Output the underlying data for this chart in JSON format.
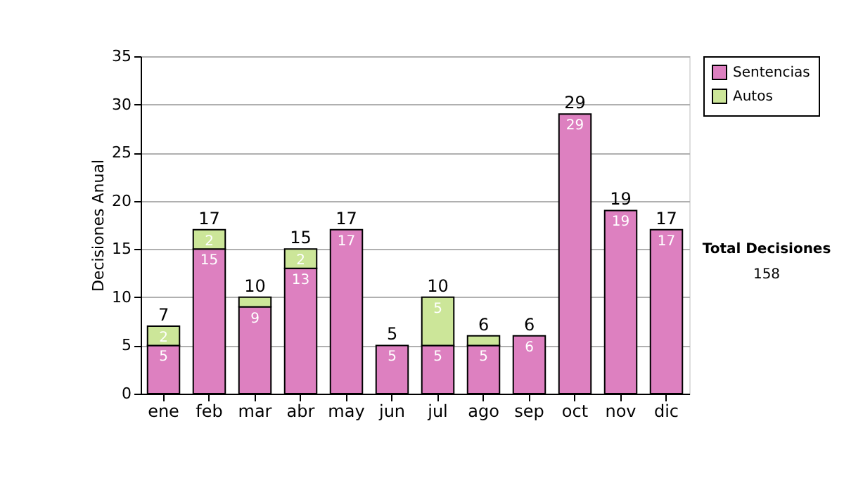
{
  "chart_data": {
    "type": "bar",
    "stacked": true,
    "ylabel": "Decisiones Anual",
    "categories": [
      "ene",
      "feb",
      "mar",
      "abr",
      "may",
      "jun",
      "jul",
      "ago",
      "sep",
      "oct",
      "nov",
      "dic"
    ],
    "series": [
      {
        "name": "Sentencias",
        "color": "#dd80c0",
        "values": [
          5,
          15,
          9,
          13,
          17,
          5,
          5,
          5,
          6,
          29,
          19,
          17
        ],
        "value_labels": [
          "5",
          "15",
          "9",
          "13",
          "17",
          "5",
          "5",
          "5",
          "6",
          "29",
          "19",
          "17"
        ]
      },
      {
        "name": "Autos",
        "color": "#cce699",
        "values": [
          2,
          2,
          1,
          2,
          0,
          0,
          5,
          1,
          0,
          0,
          0,
          0
        ],
        "value_labels": [
          "2",
          "2",
          null,
          "2",
          null,
          null,
          "5",
          null,
          null,
          null,
          null,
          null
        ]
      }
    ],
    "totals": [
      "7",
      "17",
      "10",
      "15",
      "17",
      "5",
      "10",
      "6",
      "6",
      "29",
      "19",
      "17"
    ],
    "ylim": [
      0,
      35
    ],
    "yticks": [
      0,
      5,
      10,
      15,
      20,
      25,
      30,
      35
    ],
    "grid": "y",
    "legend": "right",
    "annotations": [
      "Total Decisiones",
      "158"
    ]
  }
}
